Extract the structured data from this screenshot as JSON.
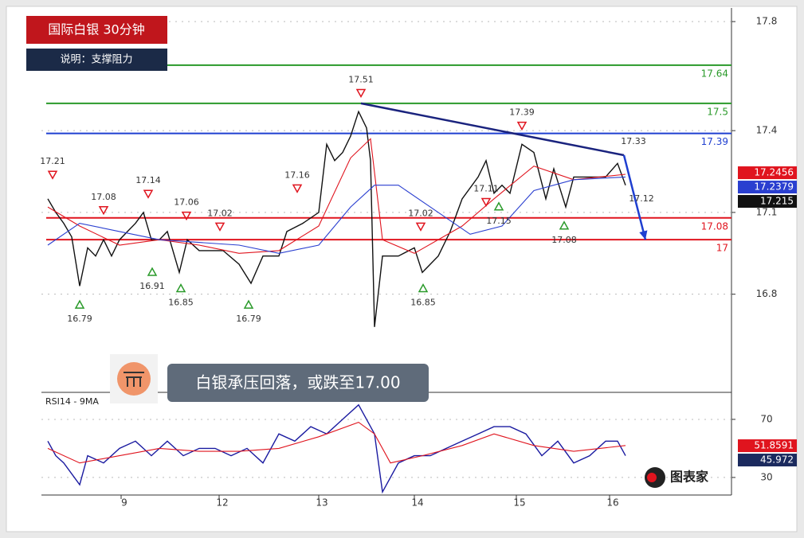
{
  "logo": "图表家",
  "chart_data": [
    {
      "type": "line",
      "title": "国际白银 30分钟",
      "subtitle": "说明：支撑阻力",
      "annotation": "白银承压回落，或跌至17.00",
      "xlim": [
        0,
        866
      ],
      "ylim": [
        16.44,
        17.85
      ],
      "yticks": [
        16.8,
        17.1,
        17.4,
        17.8
      ],
      "grid": true,
      "series": [
        {
          "color": "#111111",
          "x": [
            8,
            18,
            28,
            38,
            48,
            58,
            68,
            78,
            88,
            98,
            108,
            118,
            128,
            138,
            148,
            158,
            173,
            183,
            198,
            213,
            228,
            248,
            263,
            278,
            298,
            308,
            328,
            348,
            358,
            368,
            378,
            388,
            398,
            408,
            413,
            418,
            428,
            448,
            468,
            478,
            498,
            513,
            528,
            548,
            558,
            568,
            578,
            588,
            603,
            618,
            633,
            643,
            658,
            668,
            688,
            708,
            723,
            733
          ],
          "values": [
            17.15,
            17.1,
            17.06,
            17.01,
            16.83,
            16.97,
            16.94,
            17.0,
            16.94,
            17.0,
            17.03,
            17.06,
            17.1,
            17.0,
            17.0,
            17.03,
            16.88,
            17.0,
            16.96,
            16.96,
            16.96,
            16.91,
            16.84,
            16.94,
            16.94,
            17.03,
            17.06,
            17.1,
            17.35,
            17.29,
            17.32,
            17.38,
            17.47,
            17.41,
            17.29,
            16.68,
            16.94,
            16.94,
            16.97,
            16.88,
            16.94,
            17.03,
            17.15,
            17.23,
            17.29,
            17.17,
            17.2,
            17.17,
            17.35,
            17.32,
            17.15,
            17.26,
            17.12,
            17.23,
            17.23,
            17.23,
            17.28,
            17.2
          ]
        },
        {
          "color": "#e0141e",
          "x": [
            8,
            48,
            98,
            148,
            198,
            248,
            298,
            348,
            388,
            413,
            428,
            468,
            528,
            568,
            618,
            668,
            733
          ],
          "values": [
            17.12,
            17.05,
            16.98,
            17.0,
            16.98,
            16.95,
            16.96,
            17.05,
            17.3,
            17.37,
            17.0,
            16.95,
            17.05,
            17.15,
            17.27,
            17.22,
            17.24
          ]
        },
        {
          "color": "#2a3fd0",
          "x": [
            8,
            48,
            98,
            148,
            198,
            248,
            298,
            348,
            388,
            418,
            448,
            488,
            538,
            578,
            618,
            668,
            733
          ],
          "values": [
            16.98,
            17.06,
            17.03,
            17.0,
            16.99,
            16.98,
            16.95,
            16.98,
            17.12,
            17.2,
            17.2,
            17.12,
            17.02,
            17.05,
            17.18,
            17.22,
            17.23
          ]
        }
      ],
      "levels": [
        {
          "value": 17.64,
          "color": "#2a9a2a"
        },
        {
          "value": 17.5,
          "color": "#2a9a2a"
        },
        {
          "value": 17.39,
          "color": "#1f3fd0"
        },
        {
          "value": 17.08,
          "color": "#e0141e"
        },
        {
          "value": 17,
          "color": "#e0141e"
        }
      ],
      "trendline": {
        "color": "#1a237e",
        "x": [
          401,
          731
        ],
        "values": [
          17.5,
          17.31
        ]
      },
      "arrow": {
        "color": "#1f3fd0",
        "x": [
          731,
          758
        ],
        "values": [
          17.31,
          17.0
        ]
      },
      "pivots": [
        {
          "kind": "high",
          "x": 14,
          "value": 17.21
        },
        {
          "kind": "high",
          "x": 78,
          "value": 17.08
        },
        {
          "kind": "high",
          "x": 134,
          "value": 17.14
        },
        {
          "kind": "high",
          "x": 182,
          "value": 17.06
        },
        {
          "kind": "high",
          "x": 224,
          "value": 17.02
        },
        {
          "kind": "high",
          "x": 321,
          "value": 17.16
        },
        {
          "kind": "high",
          "x": 401,
          "value": 17.51
        },
        {
          "kind": "high",
          "x": 476,
          "value": 17.02
        },
        {
          "kind": "high",
          "x": 558,
          "value": 17.11
        },
        {
          "kind": "high",
          "x": 603,
          "value": 17.39
        },
        {
          "kind": "plain",
          "x": 731,
          "value": 17.33
        },
        {
          "kind": "plain",
          "x": 741,
          "value": 17.12
        },
        {
          "kind": "low",
          "x": 48,
          "value": 16.79
        },
        {
          "kind": "low",
          "x": 139,
          "value": 16.91
        },
        {
          "kind": "low",
          "x": 175,
          "value": 16.85
        },
        {
          "kind": "low",
          "x": 260,
          "value": 16.79
        },
        {
          "kind": "low",
          "x": 479,
          "value": 16.85
        },
        {
          "kind": "low",
          "x": 574,
          "value": 17.15
        },
        {
          "kind": "low",
          "x": 656,
          "value": 17.08
        }
      ],
      "price_tags": [
        {
          "value": 17.2456,
          "color": "#e0141e"
        },
        {
          "value": 17.2379,
          "color": "#2a3fd0"
        },
        {
          "value": 17.215,
          "color": "#111111"
        }
      ]
    },
    {
      "type": "line",
      "title": "RSI14 - 9MA",
      "xlim": [
        0,
        866
      ],
      "ylim": [
        17.9,
        88.6
      ],
      "yticks": [
        30,
        70
      ],
      "grid": true,
      "xticks": [
        {
          "value": 100,
          "label": "9"
        },
        {
          "value": 223,
          "label": "12"
        },
        {
          "value": 348,
          "label": "13"
        },
        {
          "value": 468,
          "label": "14"
        },
        {
          "value": 596,
          "label": "15"
        },
        {
          "value": 713,
          "label": "16"
        }
      ],
      "series": [
        {
          "color": "#1a1aa0",
          "x": [
            8,
            18,
            28,
            48,
            58,
            78,
            98,
            118,
            138,
            158,
            178,
            198,
            218,
            238,
            258,
            278,
            298,
            318,
            338,
            358,
            378,
            398,
            418,
            428,
            448,
            468,
            488,
            508,
            528,
            548,
            568,
            588,
            608,
            628,
            648,
            668,
            688,
            708,
            723,
            733
          ],
          "values": [
            55,
            45,
            40,
            25,
            45,
            40,
            50,
            55,
            45,
            55,
            45,
            50,
            50,
            45,
            50,
            40,
            60,
            55,
            65,
            60,
            70,
            80,
            60,
            20,
            40,
            45,
            45,
            50,
            55,
            60,
            65,
            65,
            60,
            45,
            55,
            40,
            45,
            55,
            55,
            45
          ]
        },
        {
          "color": "#e0141e",
          "x": [
            8,
            48,
            98,
            148,
            198,
            248,
            298,
            348,
            398,
            418,
            438,
            478,
            528,
            568,
            618,
            668,
            733
          ],
          "values": [
            50,
            40,
            45,
            50,
            48,
            48,
            50,
            58,
            68,
            60,
            40,
            45,
            52,
            60,
            52,
            48,
            52
          ]
        }
      ],
      "price_tags": [
        {
          "value": 51.8591,
          "color": "#e0141e"
        },
        {
          "value": 45.972,
          "color": "#1b2a5e"
        }
      ]
    }
  ]
}
